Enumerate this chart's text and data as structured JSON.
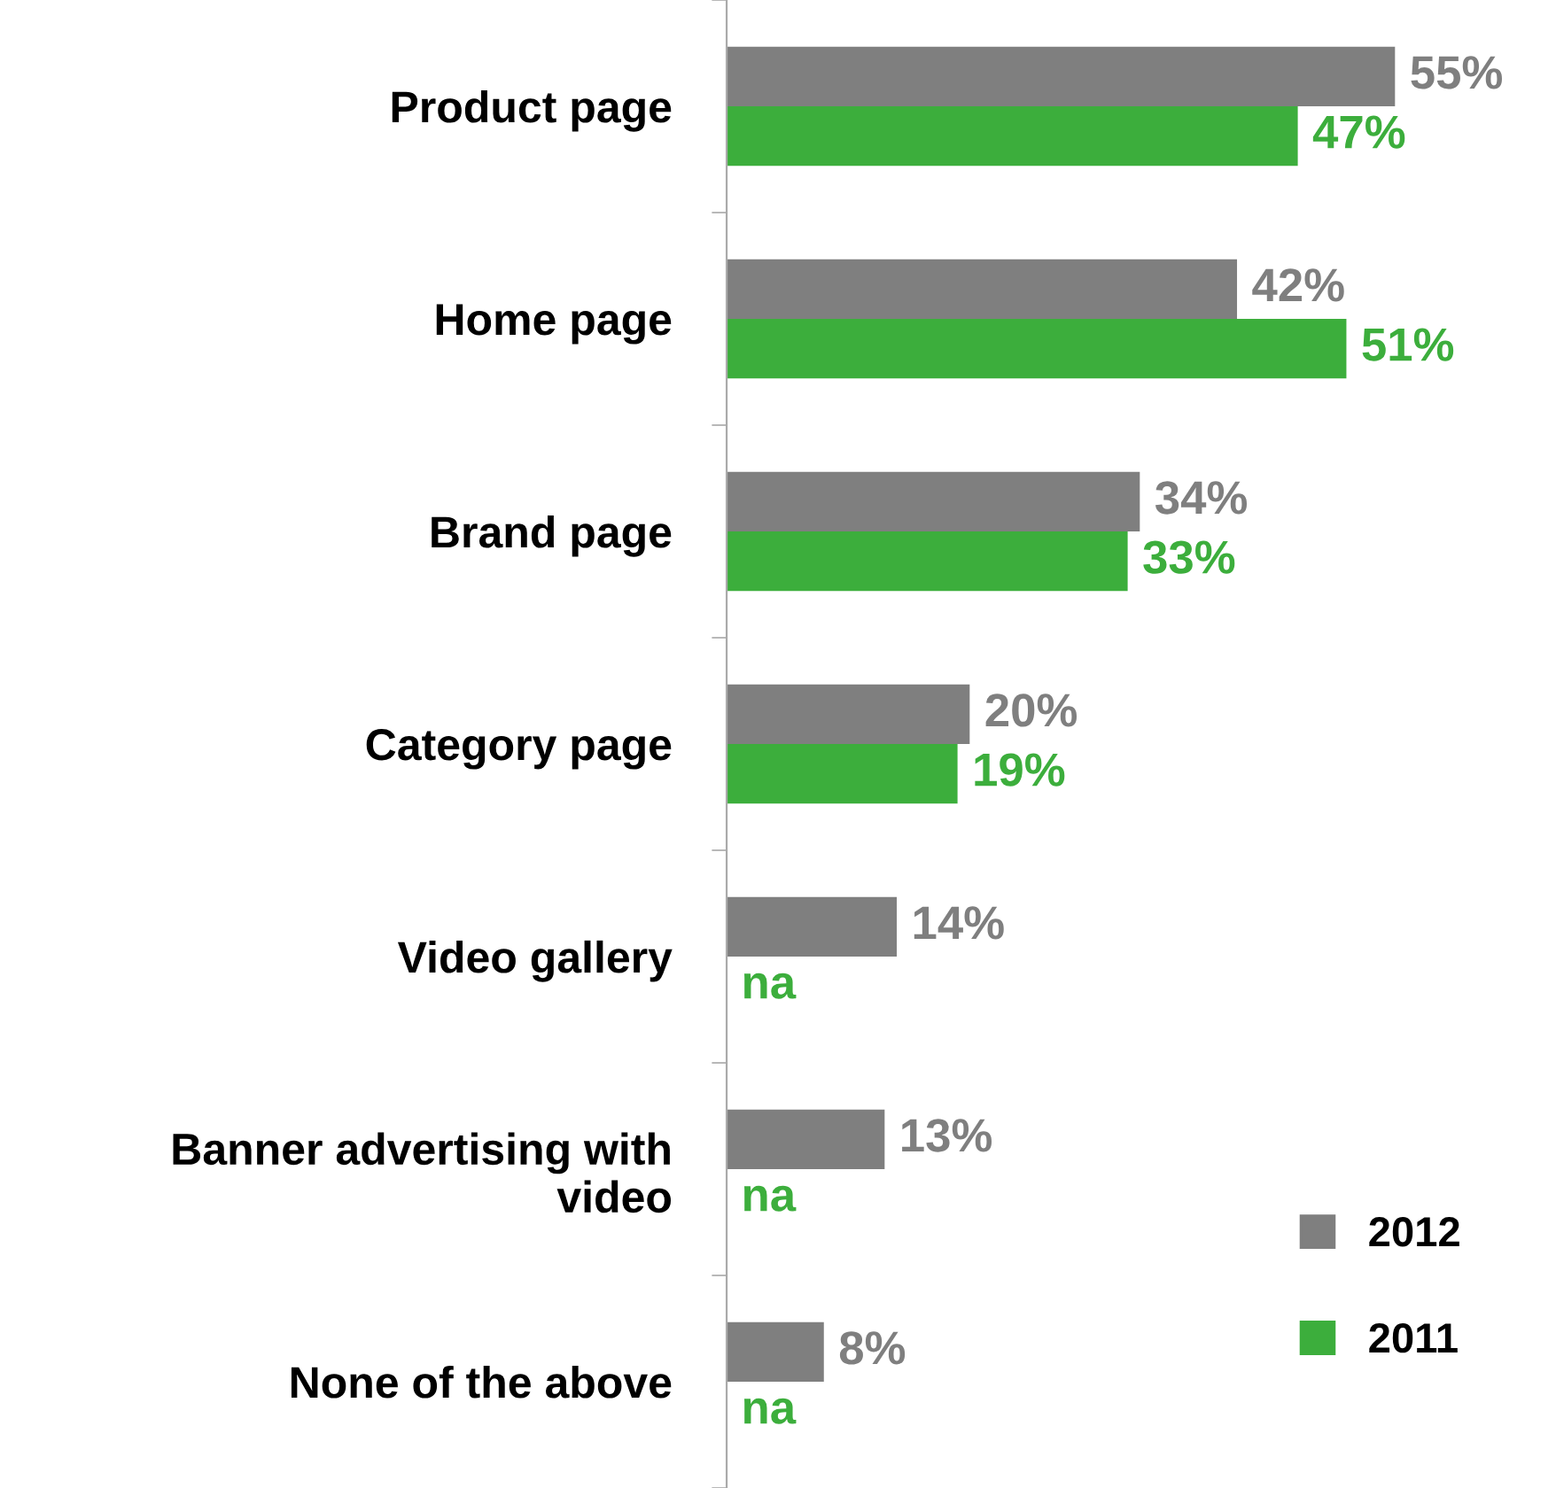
{
  "chart_data": {
    "type": "bar",
    "orientation": "horizontal",
    "categories": [
      "Product page",
      "Home page",
      "Brand page",
      "Category page",
      "Video gallery",
      "Banner advertising with\nvideo",
      "None of the above"
    ],
    "series": [
      {
        "name": "2012",
        "color": "#7f7f7f",
        "values": [
          55,
          42,
          34,
          20,
          14,
          13,
          8
        ],
        "value_labels": [
          "55%",
          "42%",
          "34%",
          "20%",
          "14%",
          "13%",
          "8%"
        ]
      },
      {
        "name": "2011",
        "color": "#3cae3c",
        "values": [
          47,
          51,
          33,
          19,
          null,
          null,
          null
        ],
        "value_labels": [
          "47%",
          "51%",
          "33%",
          "19%",
          "na",
          "na",
          "na"
        ]
      }
    ],
    "tick_labels": "y",
    "grid": false,
    "legend": "bottom right"
  }
}
